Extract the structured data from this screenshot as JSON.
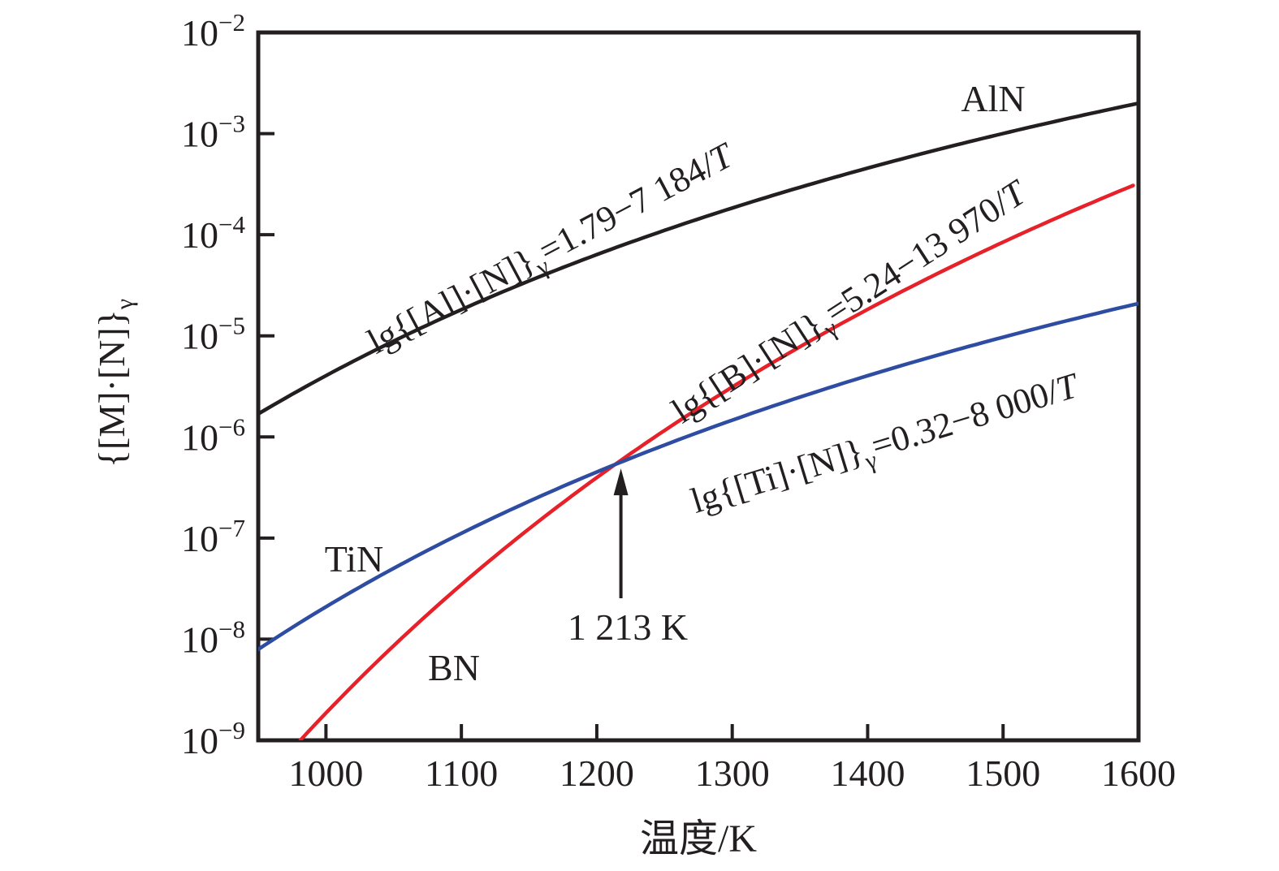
{
  "figure": {
    "xlabel": "温度/K",
    "ylabel_pre": "{[M]·[N]}",
    "ylabel_sub": "γ",
    "text_color": "#231f20",
    "background": "#ffffff"
  },
  "chart_data": {
    "type": "line",
    "title": "",
    "xlabel": "温度/K",
    "ylabel": "{[M]·[N]}γ",
    "x_axis": {
      "min": 950,
      "max": 1600,
      "tick_values": [
        1000,
        1100,
        1200,
        1300,
        1400,
        1500,
        1600
      ],
      "tick_labels": [
        "1000",
        "1100",
        "1200",
        "1300",
        "1400",
        "1500",
        "1600"
      ]
    },
    "y_axis": {
      "scale": "log",
      "min_exponent": -9,
      "max_exponent": -2,
      "tick_exponents": [
        -2,
        -3,
        -4,
        -5,
        -6,
        -7,
        -8,
        -9
      ],
      "tick_labels": [
        "10−2",
        "10−3",
        "10−4",
        "10−5",
        "10−6",
        "10−7",
        "10−8",
        "10−9"
      ]
    },
    "grid": "off",
    "legend": "none",
    "series": [
      {
        "name": "AlN",
        "color": "#231f20",
        "equation": "lg{[Al]·[N]}γ=1.79−7 184/T",
        "eq_pre": "lg{[Al]·[N]}",
        "eq_sub": "γ",
        "eq_rest": "=1.79−7 184/",
        "eq_var": "T",
        "intercept": 1.79,
        "slope_per_T": -7184,
        "lg_at_1000": -5.39,
        "lg_at_1600": -2.7
      },
      {
        "name": "BN",
        "color": "#e62129",
        "equation": "lg{[B]·[N]}γ=5.24−13 970/T",
        "eq_pre": "lg{[B]·[N]}",
        "eq_sub": "γ",
        "eq_rest": "=5.24−13 970/",
        "eq_var": "T",
        "intercept": 5.24,
        "slope_per_T": -13970,
        "lg_at_1000": -8.73,
        "lg_at_1600": -3.49
      },
      {
        "name": "TiN",
        "color": "#2e4da2",
        "equation": "lg{[Ti]·[N]}γ=0.32−8 000/T",
        "eq_pre": "lg{[Ti]·[N]}",
        "eq_sub": "γ",
        "eq_rest": "=0.32−8 000/",
        "eq_var": "T",
        "intercept": 0.32,
        "slope_per_T": -8000,
        "lg_at_1000": -7.68,
        "lg_at_1600": -4.68
      }
    ],
    "annotation": {
      "text": "1 213 K",
      "T": 1213,
      "lg": -6.28,
      "meaning": "intersection of BN and TiN solubility curves"
    }
  }
}
